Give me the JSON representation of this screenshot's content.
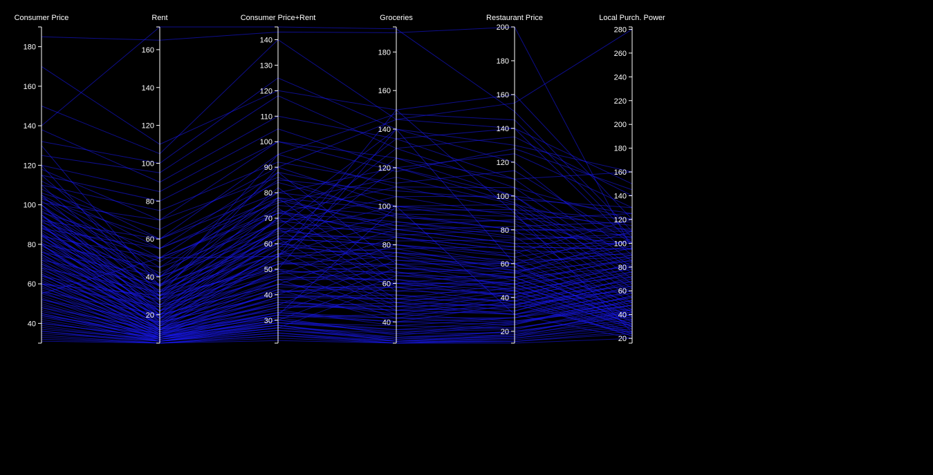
{
  "colors": {
    "background": "#000000",
    "line": "#1a1aff",
    "axis": "#ffffff",
    "text": "#ffffff"
  },
  "chart_data": {
    "type": "parallel-coordinates",
    "title": "",
    "grid": false,
    "legend": "none",
    "axes": [
      {
        "key": "consumer_price",
        "label": "Consumer Price",
        "range": [
          30,
          190
        ],
        "ticks": [
          40,
          60,
          80,
          100,
          120,
          140,
          160,
          180
        ]
      },
      {
        "key": "rent",
        "label": "Rent",
        "range": [
          5,
          172
        ],
        "ticks": [
          20,
          40,
          60,
          80,
          100,
          120,
          140,
          160
        ]
      },
      {
        "key": "consumer_price_rent",
        "label": "Consumer Price+Rent",
        "range": [
          21,
          145
        ],
        "ticks": [
          30,
          40,
          50,
          60,
          70,
          80,
          90,
          100,
          110,
          120,
          130,
          140
        ]
      },
      {
        "key": "groceries",
        "label": "Groceries",
        "range": [
          29,
          193
        ],
        "ticks": [
          40,
          60,
          80,
          100,
          120,
          140,
          160,
          180
        ]
      },
      {
        "key": "restaurant_price",
        "label": "Restaurant Price",
        "range": [
          13,
          200
        ],
        "ticks": [
          20,
          40,
          60,
          80,
          100,
          120,
          140,
          160,
          180,
          200
        ]
      },
      {
        "key": "local_purchasing_power",
        "label": "Local Purch. Power",
        "range": [
          16,
          282
        ],
        "ticks": [
          20,
          40,
          60,
          80,
          100,
          120,
          140,
          160,
          180,
          200,
          220,
          240,
          260,
          280
        ]
      }
    ],
    "rows": [
      [
        185,
        165,
        143,
        190,
        200,
        95
      ],
      [
        170,
        110,
        120,
        150,
        160,
        120
      ],
      [
        150,
        105,
        140,
        145,
        155,
        280
      ],
      [
        140,
        172,
        145,
        192,
        150,
        110
      ],
      [
        138,
        90,
        110,
        135,
        140,
        150
      ],
      [
        132,
        100,
        125,
        140,
        130,
        160
      ],
      [
        125,
        95,
        118,
        130,
        135,
        140
      ],
      [
        120,
        85,
        105,
        120,
        125,
        130
      ],
      [
        118,
        70,
        100,
        118,
        128,
        145
      ],
      [
        115,
        80,
        100,
        125,
        110,
        160
      ],
      [
        112,
        60,
        95,
        110,
        105,
        120
      ],
      [
        110,
        75,
        92,
        112,
        115,
        100
      ],
      [
        108,
        55,
        88,
        105,
        100,
        125
      ],
      [
        106,
        65,
        90,
        100,
        95,
        110
      ],
      [
        105,
        50,
        85,
        108,
        98,
        130
      ],
      [
        104,
        45,
        80,
        100,
        90,
        115
      ],
      [
        103,
        60,
        84,
        96,
        88,
        105
      ],
      [
        102,
        40,
        78,
        98,
        92,
        120
      ],
      [
        101,
        70,
        86,
        94,
        85,
        95
      ],
      [
        100,
        35,
        75,
        95,
        80,
        110
      ],
      [
        98,
        48,
        77,
        90,
        86,
        125
      ],
      [
        97,
        38,
        72,
        92,
        78,
        100
      ],
      [
        96,
        55,
        78,
        88,
        82,
        118
      ],
      [
        95,
        30,
        70,
        90,
        75,
        105
      ],
      [
        94,
        42,
        72,
        86,
        70,
        95
      ],
      [
        93,
        36,
        69,
        85,
        80,
        112
      ],
      [
        92,
        28,
        66,
        88,
        72,
        100
      ],
      [
        91,
        50,
        73,
        84,
        68,
        90
      ],
      [
        90,
        32,
        65,
        82,
        74,
        108
      ],
      [
        89,
        25,
        62,
        80,
        66,
        120
      ],
      [
        88,
        40,
        66,
        78,
        70,
        95
      ],
      [
        87,
        30,
        63,
        84,
        64,
        102
      ],
      [
        86,
        22,
        60,
        76,
        62,
        88
      ],
      [
        85,
        35,
        62,
        80,
        60,
        110
      ],
      [
        84,
        28,
        59,
        74,
        58,
        98
      ],
      [
        83,
        20,
        56,
        78,
        56,
        85
      ],
      [
        82,
        33,
        60,
        72,
        60,
        92
      ],
      [
        81,
        24,
        55,
        76,
        54,
        104
      ],
      [
        80,
        18,
        52,
        70,
        52,
        80
      ],
      [
        79,
        30,
        56,
        68,
        55,
        96
      ],
      [
        78,
        22,
        52,
        74,
        50,
        86
      ],
      [
        77,
        16,
        49,
        66,
        48,
        78
      ],
      [
        76,
        27,
        53,
        64,
        52,
        90
      ],
      [
        75,
        19,
        48,
        70,
        46,
        82
      ],
      [
        74,
        14,
        46,
        62,
        45,
        72
      ],
      [
        73,
        25,
        50,
        60,
        48,
        88
      ],
      [
        72,
        17,
        46,
        66,
        44,
        76
      ],
      [
        71,
        12,
        43,
        58,
        42,
        68
      ],
      [
        70,
        22,
        47,
        62,
        40,
        84
      ],
      [
        69,
        15,
        44,
        56,
        42,
        74
      ],
      [
        68,
        11,
        41,
        60,
        40,
        64
      ],
      [
        67,
        20,
        44,
        54,
        38,
        80
      ],
      [
        66,
        13,
        41,
        58,
        36,
        70
      ],
      [
        65,
        10,
        39,
        52,
        38,
        60
      ],
      [
        64,
        18,
        42,
        50,
        35,
        76
      ],
      [
        63,
        12,
        39,
        54,
        34,
        66
      ],
      [
        62,
        9,
        37,
        48,
        36,
        58
      ],
      [
        61,
        16,
        40,
        52,
        32,
        72
      ],
      [
        60,
        11,
        37,
        46,
        34,
        62
      ],
      [
        59,
        8,
        35,
        50,
        30,
        54
      ],
      [
        58,
        14,
        38,
        44,
        32,
        68
      ],
      [
        57,
        10,
        35,
        48,
        30,
        58
      ],
      [
        56,
        8,
        33,
        42,
        28,
        50
      ],
      [
        55,
        13,
        36,
        46,
        30,
        64
      ],
      [
        54,
        9,
        33,
        40,
        28,
        55
      ],
      [
        53,
        7,
        31,
        44,
        26,
        48
      ],
      [
        52,
        12,
        34,
        38,
        28,
        60
      ],
      [
        51,
        8,
        32,
        42,
        25,
        52
      ],
      [
        50,
        7,
        30,
        36,
        26,
        45
      ],
      [
        49,
        11,
        32,
        40,
        24,
        56
      ],
      [
        48,
        8,
        30,
        34,
        25,
        48
      ],
      [
        47,
        6,
        29,
        38,
        22,
        42
      ],
      [
        46,
        10,
        31,
        33,
        24,
        52
      ],
      [
        45,
        7,
        29,
        36,
        22,
        44
      ],
      [
        44,
        6,
        28,
        32,
        20,
        40
      ],
      [
        43,
        9,
        29,
        35,
        21,
        48
      ],
      [
        42,
        7,
        28,
        31,
        20,
        38
      ],
      [
        41,
        6,
        27,
        34,
        19,
        42
      ],
      [
        40,
        8,
        28,
        30,
        18,
        36
      ],
      [
        39,
        6,
        26,
        32,
        18,
        44
      ],
      [
        38,
        6,
        26,
        31,
        17,
        34
      ],
      [
        37,
        7,
        27,
        30,
        17,
        40
      ],
      [
        36,
        5,
        25,
        30,
        16,
        32
      ],
      [
        35,
        6,
        25,
        29,
        16,
        30
      ],
      [
        34,
        5,
        24,
        29,
        15,
        28
      ],
      [
        33,
        5,
        24,
        30,
        14,
        26
      ],
      [
        32,
        5,
        23,
        29,
        14,
        24
      ],
      [
        31,
        5,
        22,
        29,
        13,
        20
      ],
      [
        115,
        40,
        88,
        70,
        60,
        50
      ],
      [
        110,
        32,
        82,
        65,
        58,
        42
      ],
      [
        105,
        28,
        78,
        60,
        55,
        38
      ],
      [
        100,
        25,
        74,
        58,
        52,
        35
      ],
      [
        95,
        22,
        70,
        56,
        50,
        32
      ],
      [
        90,
        20,
        66,
        52,
        48,
        30
      ],
      [
        85,
        18,
        62,
        50,
        46,
        28
      ],
      [
        80,
        15,
        58,
        48,
        44,
        25
      ],
      [
        75,
        14,
        55,
        46,
        42,
        24
      ],
      [
        70,
        12,
        50,
        44,
        40,
        22
      ],
      [
        65,
        10,
        46,
        42,
        38,
        22
      ],
      [
        60,
        9,
        42,
        40,
        36,
        24
      ],
      [
        92,
        60,
        80,
        120,
        100,
        70
      ],
      [
        88,
        55,
        76,
        115,
        95,
        66
      ],
      [
        84,
        50,
        72,
        110,
        92,
        62
      ],
      [
        80,
        45,
        68,
        105,
        88,
        58
      ],
      [
        76,
        40,
        64,
        100,
        84,
        54
      ],
      [
        72,
        36,
        60,
        96,
        80,
        50
      ],
      [
        68,
        32,
        56,
        92,
        76,
        46
      ],
      [
        64,
        28,
        52,
        88,
        72,
        44
      ],
      [
        60,
        24,
        48,
        84,
        68,
        42
      ],
      [
        56,
        20,
        44,
        80,
        64,
        40
      ],
      [
        52,
        16,
        40,
        76,
        60,
        38
      ],
      [
        48,
        12,
        36,
        72,
        56,
        36
      ],
      [
        44,
        10,
        33,
        68,
        52,
        34
      ],
      [
        40,
        8,
        30,
        64,
        48,
        32
      ],
      [
        36,
        6,
        27,
        60,
        44,
        30
      ],
      [
        100,
        20,
        70,
        140,
        120,
        90
      ],
      [
        95,
        18,
        66,
        135,
        110,
        85
      ],
      [
        90,
        16,
        62,
        130,
        105,
        80
      ],
      [
        85,
        14,
        58,
        125,
        100,
        78
      ],
      [
        80,
        12,
        55,
        120,
        96,
        75
      ],
      [
        120,
        30,
        90,
        145,
        140,
        100
      ],
      [
        130,
        35,
        95,
        148,
        145,
        105
      ],
      [
        60,
        30,
        50,
        140,
        60,
        30
      ],
      [
        55,
        50,
        55,
        150,
        90,
        25
      ],
      [
        45,
        8,
        32,
        100,
        30,
        20
      ]
    ]
  }
}
